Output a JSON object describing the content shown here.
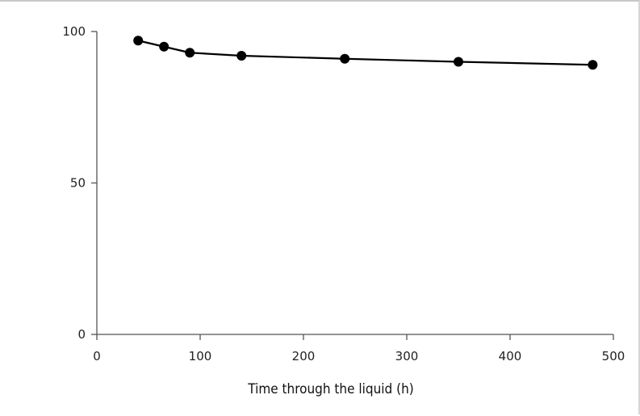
{
  "chart_data": {
    "type": "line",
    "title": "",
    "xlabel": "Time through the liquid (h)",
    "ylabel": "",
    "xlim": [
      0,
      500
    ],
    "ylim": [
      0,
      100
    ],
    "x_ticks": [
      0,
      100,
      200,
      300,
      400,
      500
    ],
    "y_ticks": [
      0,
      50,
      100
    ],
    "grid": false,
    "legend": "none",
    "series": [
      {
        "x": [
          40,
          65,
          90,
          140,
          240,
          350,
          480
        ],
        "y": [
          97,
          95,
          93,
          92,
          91,
          90,
          89
        ]
      }
    ],
    "colors": {
      "line": "#000000",
      "marker": "#000000",
      "axis": "#555555"
    }
  }
}
